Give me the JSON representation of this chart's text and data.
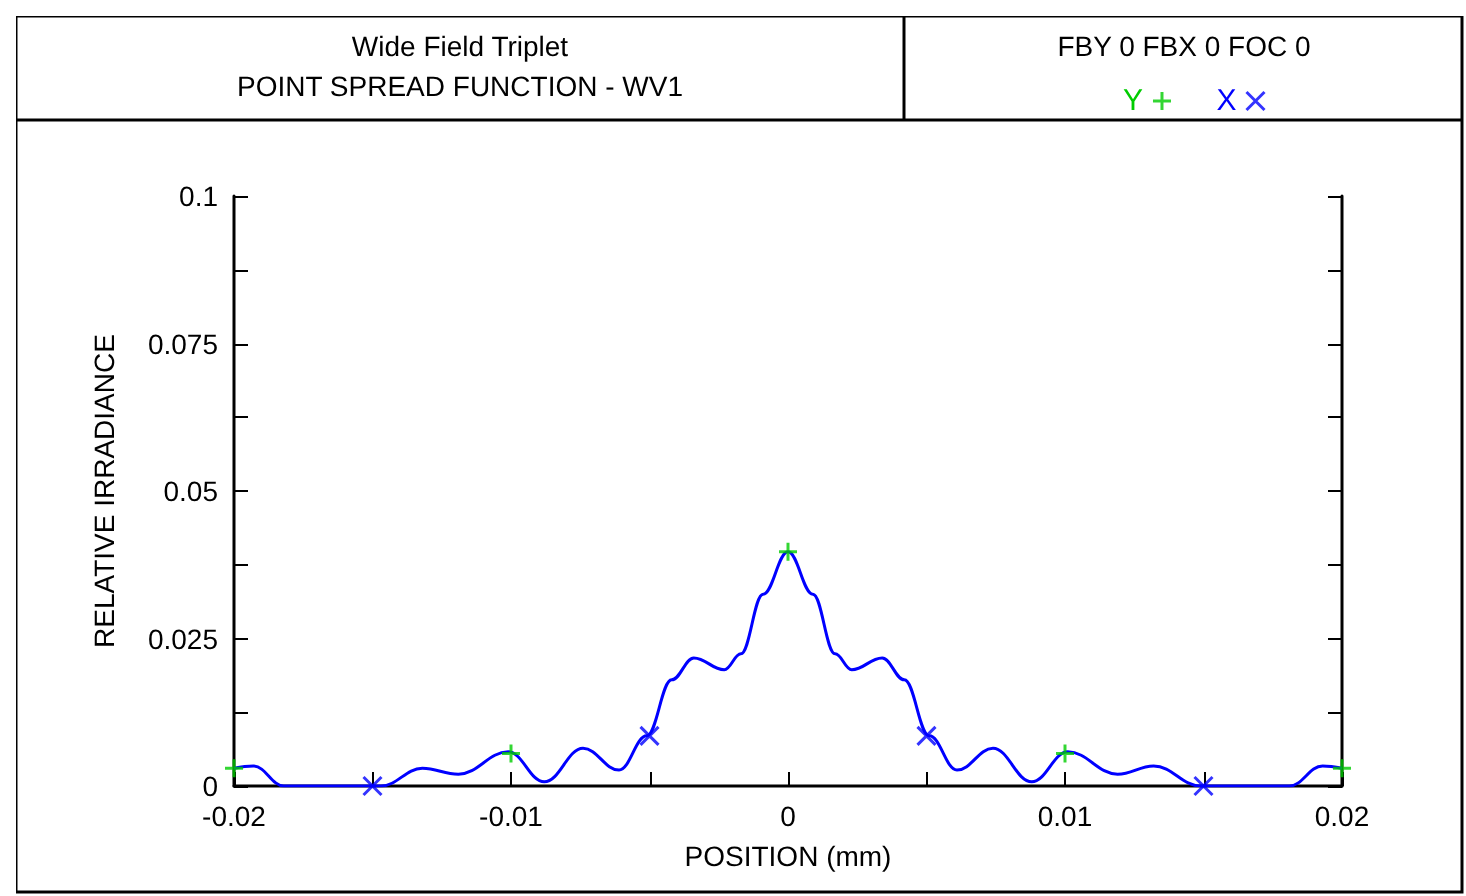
{
  "chart_data": {
    "type": "line",
    "title": "Wide Field Triplet",
    "subtitle": "POINT SPREAD FUNCTION - WV1",
    "annotations": [
      "FBY 0 FBX 0 FOC 0"
    ],
    "xlabel": "POSITION (mm)",
    "ylabel": "RELATIVE IRRADIANCE",
    "xlim": [
      -0.02,
      0.02
    ],
    "xticks": [
      -0.02,
      {
        "value": -0.015,
        "label": null
      },
      -0.01,
      {
        "value": -0.005,
        "label": null
      },
      0,
      {
        "value": 0.005,
        "label": null
      },
      0.01,
      {
        "value": 0.015,
        "label": null
      },
      0.02
    ],
    "ylim": [
      0,
      0.1
    ],
    "yticks": [
      0,
      {
        "value": 0.0125,
        "label": null
      },
      0.025,
      {
        "value": 0.0375,
        "label": null
      },
      0.05,
      {
        "value": 0.0625,
        "label": null
      },
      0.075,
      {
        "value": 0.0875,
        "label": null
      },
      0.1
    ],
    "grid": false,
    "legend": "top right",
    "series": [
      {
        "color": "#0000ff",
        "marker": "none",
        "x": [
          -0.02,
          -0.0193,
          -0.0182,
          -0.0147,
          -0.0132,
          -0.0119,
          -0.0101,
          -0.0088,
          -0.0074,
          -0.0061,
          -0.0051,
          -0.0042,
          -0.0034,
          -0.0023,
          -0.0017,
          -0.0009,
          0,
          0.0009,
          0.0017,
          0.0023,
          0.0034,
          0.0042,
          0.0051,
          0.0061,
          0.0074,
          0.0088,
          0.0101,
          0.0119,
          0.0132,
          0.0149,
          0.0181,
          0.0193,
          0.02
        ],
        "values": [
          0.003,
          0.0034,
          0,
          0,
          0.003,
          0.002,
          0.0058,
          0.0007,
          0.0064,
          0.0027,
          0.0085,
          0.018,
          0.0217,
          0.0197,
          0.0224,
          0.0325,
          0.0397,
          0.0325,
          0.0224,
          0.0197,
          0.0217,
          0.018,
          0.0085,
          0.0027,
          0.0064,
          0.0007,
          0.0058,
          0.002,
          0.0034,
          0,
          0,
          0.0034,
          0.003
        ]
      },
      {
        "type": "scatter",
        "name": "Y",
        "color": "#00cc00",
        "marker": "cross",
        "x": [
          -0.02,
          -0.01,
          0,
          0.01,
          0.02
        ],
        "values": [
          0.003,
          0.0055,
          0.0397,
          0.0055,
          0.003
        ]
      },
      {
        "type": "scatter",
        "name": "X",
        "color": "#0000ff",
        "marker": "x",
        "x": [
          -0.015,
          -0.005,
          0.005,
          0.015
        ],
        "values": [
          0,
          0.0085,
          0.0085,
          0
        ]
      }
    ]
  }
}
